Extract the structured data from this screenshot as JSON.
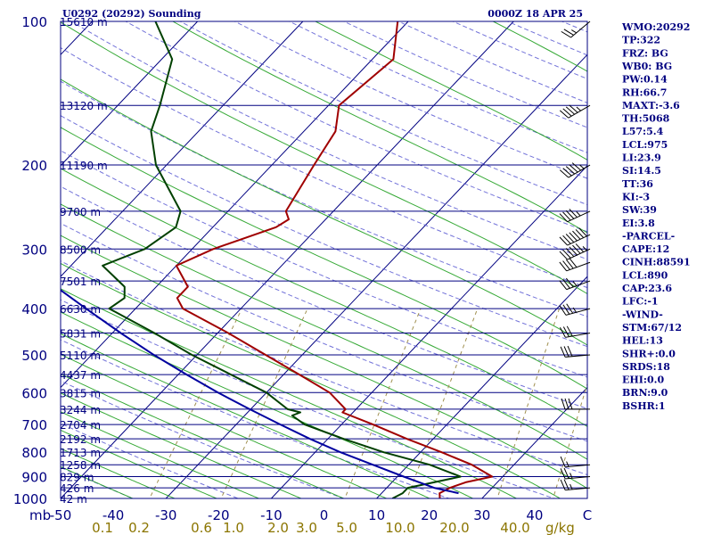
{
  "header": {
    "title": "U0292 (20292) Sounding",
    "time": "0000Z 18 APR 25"
  },
  "colors": {
    "frame": "#000080",
    "isotherm": "#000080",
    "dry_adiabat": "#5050d0",
    "moist_adiabat": "#20a020",
    "mixing_ratio": "#a09050",
    "temperature": "#a00000",
    "dewpoint": "#004000",
    "parcel": "#0000a0",
    "index_text": "#000080",
    "wind_barb": "#000000"
  },
  "chart_data": {
    "type": "line",
    "title": "U0292 (20292) Sounding",
    "time": "0000Z 18 APR 25",
    "xlabel": "",
    "ylabel": "mb",
    "y_scale": "log-pressure",
    "xlim": [
      -50,
      0
    ],
    "ylim": [
      1000,
      100
    ],
    "pressure_ticks": [
      100,
      200,
      300,
      400,
      500,
      600,
      700,
      800,
      900,
      1000
    ],
    "pressure_axis_label": "mb",
    "temperature_ticks": [
      "-50",
      "-40",
      "-30",
      "-20",
      "-10",
      "0",
      "10",
      "20",
      "30",
      "40",
      "C"
    ],
    "mixing_ratio_ticks": [
      "0.1",
      "0.2",
      "0.6",
      "1.0",
      "2.0",
      "3.0",
      "5.0",
      "10.0",
      "20.0",
      "40.0"
    ],
    "mixing_ratio_unit": "g/kg",
    "height_levels": [
      {
        "p": 100,
        "label": "15610 m"
      },
      {
        "p": 150,
        "label": "13120 m"
      },
      {
        "p": 200,
        "label": "11190 m"
      },
      {
        "p": 250,
        "label": "9700 m"
      },
      {
        "p": 300,
        "label": "8500 m"
      },
      {
        "p": 350,
        "label": "7501 m"
      },
      {
        "p": 400,
        "label": "6630 m"
      },
      {
        "p": 450,
        "label": "5831 m"
      },
      {
        "p": 500,
        "label": "5110 m"
      },
      {
        "p": 550,
        "label": "4437 m"
      },
      {
        "p": 600,
        "label": "3815 m"
      },
      {
        "p": 650,
        "label": "3244 m"
      },
      {
        "p": 700,
        "label": "2704 m"
      },
      {
        "p": 750,
        "label": "2192 m"
      },
      {
        "p": 800,
        "label": "1713 m"
      },
      {
        "p": 850,
        "label": "1258 m"
      },
      {
        "p": 900,
        "label": "829 m"
      },
      {
        "p": 950,
        "label": "426 m"
      },
      {
        "p": 1000,
        "label": "42 m"
      }
    ],
    "series": [
      {
        "name": "temperature",
        "points": [
          {
            "p": 1000,
            "t": -14.0
          },
          {
            "p": 975,
            "t": -14.5
          },
          {
            "p": 950,
            "t": -14.0
          },
          {
            "p": 925,
            "t": -13.0
          },
          {
            "p": 900,
            "t": -11.0
          },
          {
            "p": 850,
            "t": -14.0
          },
          {
            "p": 800,
            "t": -18.0
          },
          {
            "p": 750,
            "t": -22.5
          },
          {
            "p": 700,
            "t": -27.0
          },
          {
            "p": 660,
            "t": -31.0
          },
          {
            "p": 650,
            "t": -31.0
          },
          {
            "p": 600,
            "t": -34.0
          },
          {
            "p": 550,
            "t": -38.5
          },
          {
            "p": 500,
            "t": -43.5
          },
          {
            "p": 450,
            "t": -49.0
          },
          {
            "p": 400,
            "t": -55.5
          },
          {
            "p": 380,
            "t": -57.0
          },
          {
            "p": 360,
            "t": -57.0
          },
          {
            "p": 325,
            "t": -60.0
          },
          {
            "p": 300,
            "t": -58.0
          },
          {
            "p": 270,
            "t": -54.0
          },
          {
            "p": 260,
            "t": -53.5
          },
          {
            "p": 250,
            "t": -54.5
          },
          {
            "p": 200,
            "t": -56.0
          },
          {
            "p": 170,
            "t": -57.0
          },
          {
            "p": 150,
            "t": -59.0
          },
          {
            "p": 120,
            "t": -58.0
          },
          {
            "p": 100,
            "t": -61.0
          }
        ]
      },
      {
        "name": "dewpoint",
        "points": [
          {
            "p": 1000,
            "t": -18.5
          },
          {
            "p": 975,
            "t": -18.0
          },
          {
            "p": 950,
            "t": -18.0
          },
          {
            "p": 925,
            "t": -16.0
          },
          {
            "p": 900,
            "t": -14.0
          },
          {
            "p": 850,
            "t": -18.0
          },
          {
            "p": 800,
            "t": -23.5
          },
          {
            "p": 750,
            "t": -28.5
          },
          {
            "p": 700,
            "t": -33.5
          },
          {
            "p": 670,
            "t": -35.5
          },
          {
            "p": 660,
            "t": -35.0
          },
          {
            "p": 650,
            "t": -36.5
          },
          {
            "p": 600,
            "t": -40.0
          },
          {
            "p": 550,
            "t": -45.0
          },
          {
            "p": 500,
            "t": -50.5
          },
          {
            "p": 450,
            "t": -56.0
          },
          {
            "p": 400,
            "t": -62.5
          },
          {
            "p": 380,
            "t": -62.0
          },
          {
            "p": 360,
            "t": -63.0
          },
          {
            "p": 325,
            "t": -67.0
          },
          {
            "p": 300,
            "t": -64.5
          },
          {
            "p": 270,
            "t": -63.5
          },
          {
            "p": 250,
            "t": -64.5
          },
          {
            "p": 200,
            "t": -71.0
          },
          {
            "p": 170,
            "t": -74.5
          },
          {
            "p": 150,
            "t": -76.0
          },
          {
            "p": 120,
            "t": -79.0
          },
          {
            "p": 100,
            "t": -84.0
          }
        ]
      },
      {
        "name": "parcel",
        "points": [
          {
            "p": 975,
            "t": -12.7
          },
          {
            "p": 950,
            "t": -15.5
          },
          {
            "p": 925,
            "t": -17.4
          },
          {
            "p": 900,
            "t": -19.4
          },
          {
            "p": 850,
            "t": -23.4
          },
          {
            "p": 800,
            "t": -27.6
          },
          {
            "p": 750,
            "t": -31.7
          },
          {
            "p": 700,
            "t": -35.8
          },
          {
            "p": 650,
            "t": -40.1
          },
          {
            "p": 600,
            "t": -44.6
          },
          {
            "p": 550,
            "t": -49.2
          },
          {
            "p": 500,
            "t": -54.1
          },
          {
            "p": 450,
            "t": -59.2
          },
          {
            "p": 400,
            "t": -64.7
          },
          {
            "p": 350,
            "t": -70.8
          },
          {
            "p": 300,
            "t": -77.4
          },
          {
            "p": 250,
            "t": -84.8
          },
          {
            "p": 200,
            "t": -93.3
          },
          {
            "p": 150,
            "t": -103.5
          },
          {
            "p": 100,
            "t": -116.6
          }
        ]
      }
    ],
    "wind_barbs": [
      {
        "p": 100,
        "dir": 230,
        "spd": 25
      },
      {
        "p": 150,
        "dir": 240,
        "spd": 45
      },
      {
        "p": 200,
        "dir": 240,
        "spd": 55
      },
      {
        "p": 250,
        "dir": 245,
        "spd": 45
      },
      {
        "p": 280,
        "dir": 245,
        "spd": 70
      },
      {
        "p": 300,
        "dir": 245,
        "spd": 65
      },
      {
        "p": 320,
        "dir": 250,
        "spd": 40
      },
      {
        "p": 350,
        "dir": 250,
        "spd": 35
      },
      {
        "p": 400,
        "dir": 255,
        "spd": 35
      },
      {
        "p": 450,
        "dir": 260,
        "spd": 30
      },
      {
        "p": 500,
        "dir": 265,
        "spd": 30
      },
      {
        "p": 650,
        "dir": 270,
        "spd": 30
      },
      {
        "p": 850,
        "dir": 265,
        "spd": 15
      },
      {
        "p": 900,
        "dir": 265,
        "spd": 25
      },
      {
        "p": 950,
        "dir": 265,
        "spd": 25
      }
    ]
  },
  "indices": [
    "WMO:20292",
    "TP:322",
    "FRZ: BG",
    "WB0: BG",
    "PW:0.14",
    "RH:66.7",
    "MAXT:-3.6",
    "TH:5068",
    "L57:5.4",
    "LCL:975",
    "LI:23.9",
    "SI:14.5",
    "TT:36",
    "KI:-3",
    "SW:39",
    "EI:3.8",
    "-PARCEL-",
    "CAPE:12",
    "CINH:88591",
    "LCL:890",
    "CAP:23.6",
    "LFC:-1",
    "-WIND-",
    "STM:67/12",
    "HEL:13",
    "SHR+:0.0",
    "SRDS:18",
    "EHI:0.0",
    "BRN:9.0",
    "BSHR:1"
  ]
}
